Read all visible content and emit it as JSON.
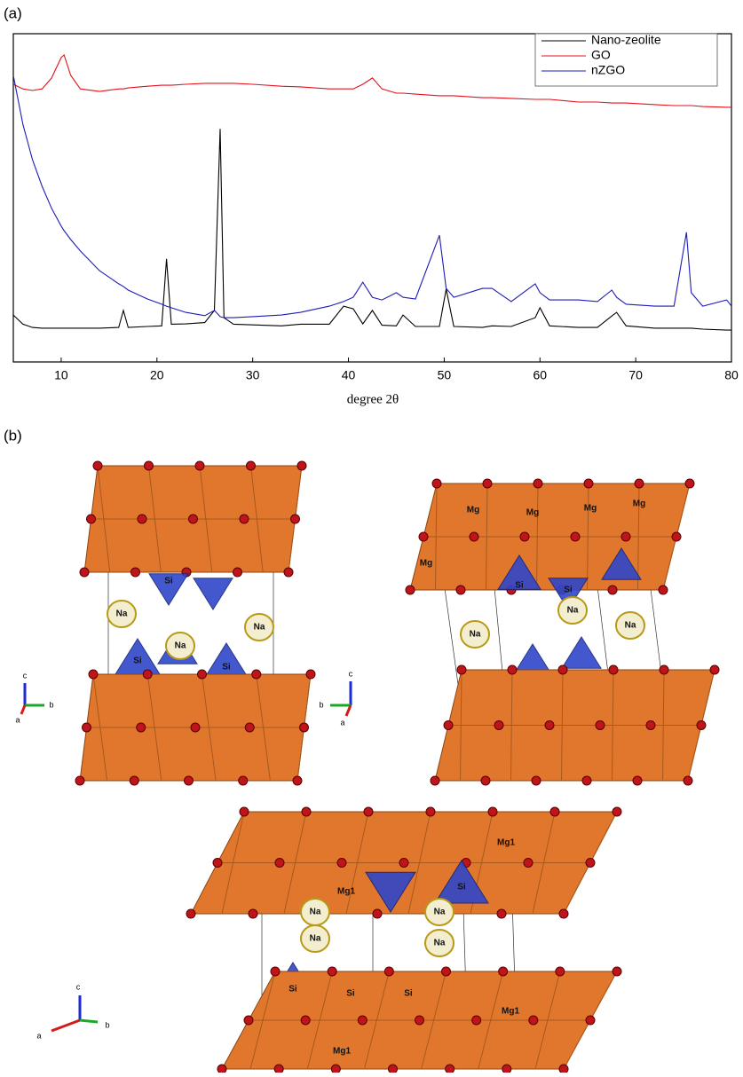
{
  "chart_data": {
    "type": "line",
    "panel_label": "(a)",
    "xlabel": "degree 2θ",
    "x": [
      5,
      6,
      7,
      8,
      9,
      10,
      10.3,
      11,
      12,
      14,
      16,
      16.5,
      17,
      19,
      20.5,
      21,
      21.5,
      23,
      25,
      26,
      26.6,
      27,
      28,
      30,
      33,
      35,
      38,
      39.5,
      40.5,
      41.5,
      42.5,
      43.5,
      45,
      45.7,
      47,
      49.5,
      50.2,
      51,
      54,
      55,
      57,
      59.5,
      60,
      61,
      64,
      66,
      67.5,
      68,
      69,
      72,
      74,
      75.3,
      75.8,
      77,
      79.5,
      80
    ],
    "series": [
      {
        "name": "Nano-zeolite",
        "color": "#000000",
        "values": [
          14.3,
          11.5,
          10.5,
          10.3,
          10.3,
          10.3,
          10.3,
          10.3,
          10.3,
          10.3,
          10.5,
          15.7,
          10.5,
          10.8,
          11,
          31.4,
          11.5,
          11.6,
          12,
          15.7,
          71,
          13.5,
          11.5,
          11.3,
          11,
          11.5,
          11.5,
          17,
          16.2,
          11.6,
          15.7,
          11.2,
          11,
          14.3,
          10.8,
          10.8,
          22.2,
          10.8,
          10.5,
          11,
          10.8,
          13.5,
          16.5,
          11,
          10.5,
          10.5,
          14,
          15.1,
          11,
          10.3,
          10.3,
          10.3,
          10.3,
          10,
          9.7,
          9.7
        ]
      },
      {
        "name": "GO",
        "color": "#e3121b",
        "values": [
          84.6,
          83.2,
          82.7,
          83.2,
          86.5,
          92.7,
          93.5,
          87.3,
          83.2,
          82.4,
          83.2,
          83.2,
          83.5,
          84,
          84.3,
          84.3,
          84.3,
          84.6,
          84.9,
          84.9,
          84.9,
          84.9,
          84.9,
          84.6,
          84,
          83.8,
          83.2,
          83.2,
          83.2,
          84.6,
          86.5,
          83.2,
          81.9,
          81.9,
          81.6,
          81.1,
          81.1,
          81.1,
          80.5,
          80.5,
          80.3,
          80,
          80,
          80,
          79.2,
          79.2,
          78.9,
          78.9,
          78.9,
          78.4,
          78.1,
          78.1,
          78.1,
          77.8,
          77.6,
          77.6
        ]
      },
      {
        "name": "nZGO",
        "color": "#1c1cb8",
        "values": [
          87.3,
          72.4,
          61.6,
          53.5,
          46.8,
          41.4,
          40,
          37.3,
          33.8,
          27.8,
          23.8,
          23,
          21.9,
          19.2,
          17.6,
          17,
          16.5,
          15.1,
          14.1,
          15.7,
          13.8,
          13.5,
          13.5,
          13.8,
          14.3,
          15.1,
          17,
          18.4,
          19.7,
          24.3,
          19.7,
          18.9,
          21.1,
          19.7,
          19.2,
          38.6,
          22.4,
          19.7,
          22.4,
          22.4,
          18.4,
          23.8,
          21.1,
          18.9,
          18.9,
          18.4,
          21.9,
          19.7,
          17.6,
          17,
          17,
          39.5,
          21.1,
          17,
          18.9,
          17
        ]
      }
    ],
    "xlim": [
      5,
      80
    ],
    "xticks": [
      10,
      20,
      30,
      40,
      50,
      60,
      70,
      80
    ],
    "ylim": [
      0,
      100
    ],
    "legend": "upper right"
  },
  "panel_b": {
    "label": "(b)",
    "structures": [
      {
        "labels": [
          "Na",
          "Na",
          "Na",
          "Si",
          "Si",
          "Si"
        ],
        "axes": [
          "c",
          "b",
          "a"
        ]
      },
      {
        "labels": [
          "Mg",
          "Mg",
          "Mg",
          "Mg",
          "Mg",
          "Na",
          "Na",
          "Na",
          "Si",
          "Si"
        ],
        "axes": [
          "c",
          "b",
          "a"
        ]
      },
      {
        "labels": [
          "Mg1",
          "Mg1",
          "Mg1",
          "Mg1",
          "Na",
          "Na",
          "Na",
          "Na",
          "Si",
          "Si",
          "Si",
          "Si"
        ],
        "axes": [
          "c",
          "a",
          "b"
        ]
      }
    ]
  }
}
